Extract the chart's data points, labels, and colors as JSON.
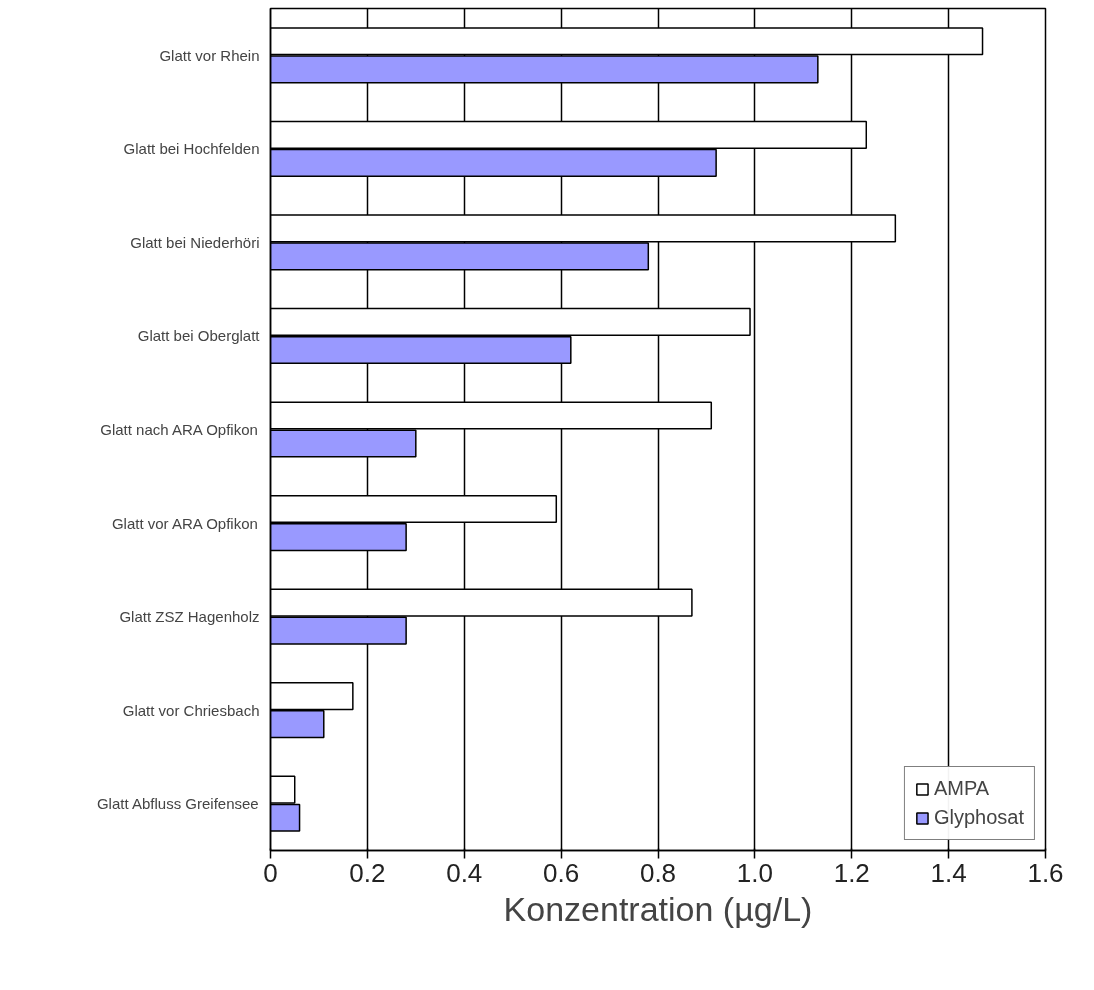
{
  "chart_data": {
    "type": "bar",
    "orientation": "horizontal",
    "xlabel": "Konzentration (µg/L)",
    "categories": [
      "Glatt vor Rhein",
      "Glatt bei Hochfelden",
      "Glatt bei Niederhöri",
      "Glatt bei Oberglatt",
      "Glatt nach ARA Opfikon",
      "Glatt vor ARA Opfikon",
      "Glatt ZSZ Hagenholz",
      "Glatt vor Chriesbach",
      "Glatt Abfluss Greifensee"
    ],
    "series": [
      {
        "name": "AMPA",
        "color": "#ffffff",
        "values": [
          1.47,
          1.23,
          1.29,
          0.99,
          0.91,
          0.59,
          0.87,
          0.17,
          0.05
        ]
      },
      {
        "name": "Glyphosat",
        "color": "#9999ff",
        "values": [
          1.13,
          0.92,
          0.78,
          0.62,
          0.3,
          0.28,
          0.28,
          0.11,
          0.06
        ]
      }
    ],
    "xlim": [
      0,
      1.6
    ],
    "xticks": [
      0,
      {
        "value": 0.2,
        "label": "0.2"
      },
      {
        "value": 0.4,
        "label": "0.4"
      },
      {
        "value": 0.6,
        "label": "0.6"
      },
      {
        "value": 0.8,
        "label": "0.8"
      },
      {
        "value": 1.0,
        "label": "1.0"
      },
      {
        "value": 1.2,
        "label": "1.2"
      },
      {
        "value": 1.4,
        "label": "1.4"
      },
      {
        "value": 1.6,
        "label": "1.6"
      }
    ],
    "grid": "x",
    "legend": "bottom right"
  }
}
